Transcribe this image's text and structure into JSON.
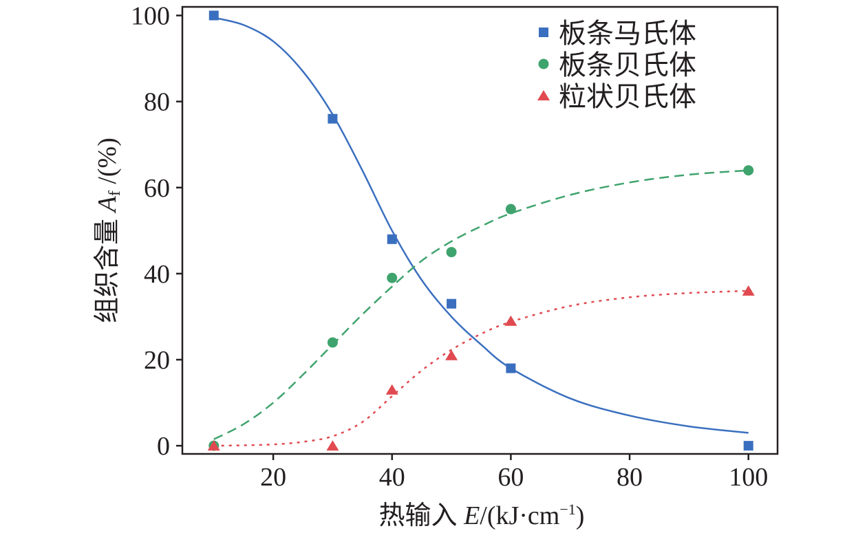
{
  "chart_data": {
    "type": "scatter",
    "title": "",
    "xlabel": {
      "prefix": "热输入 ",
      "var": "E",
      "suffix": "/(kJ·cm",
      "sup": "−1",
      "end": ")"
    },
    "ylabel": {
      "prefix": "组织含量 ",
      "var": "A",
      "sub": "f",
      "suffix": " /(%)"
    },
    "xlim": [
      4.7,
      104.9
    ],
    "ylim": [
      -1.9,
      102
    ],
    "xticks": [
      20,
      40,
      60,
      80,
      100
    ],
    "yticks": [
      0,
      20,
      40,
      60,
      80,
      100
    ],
    "grid": false,
    "legend_position": "top-right",
    "series": [
      {
        "name": "板条马氏体",
        "marker": "square",
        "color": "#3a6fbf",
        "line": "solid",
        "x": [
          10,
          30,
          40,
          50,
          60,
          100
        ],
        "y": [
          100,
          76,
          48,
          33,
          18,
          0
        ],
        "fit_x": [
          10,
          15,
          20,
          25,
          30,
          35,
          40,
          45,
          50,
          55,
          60,
          70,
          80,
          90,
          100
        ],
        "fit_y": [
          99.5,
          97.8,
          94,
          87,
          77,
          64,
          50,
          38.5,
          30,
          23.5,
          18,
          11,
          7,
          4.5,
          3
        ]
      },
      {
        "name": "板条贝氏体",
        "marker": "circle",
        "color": "#3fa36d",
        "line": "dashed",
        "x": [
          10,
          30,
          40,
          50,
          60,
          100
        ],
        "y": [
          0,
          24,
          39,
          45,
          55,
          64
        ],
        "fit_x": [
          10,
          15,
          20,
          25,
          30,
          35,
          40,
          45,
          50,
          55,
          60,
          70,
          80,
          90,
          100
        ],
        "fit_y": [
          1.5,
          5,
          10,
          16.5,
          23.5,
          30.5,
          37,
          43,
          47.5,
          51,
          54,
          58.3,
          61.2,
          63,
          64
        ]
      },
      {
        "name": "粒状贝氏体",
        "marker": "triangle",
        "color": "#e04a50",
        "line": "dotted",
        "x": [
          10,
          30,
          40,
          50,
          60,
          100
        ],
        "y": [
          0,
          0,
          13,
          21,
          29,
          36
        ],
        "fit_x": [
          10,
          15,
          20,
          25,
          30,
          35,
          40,
          45,
          50,
          55,
          60,
          70,
          80,
          90,
          100
        ],
        "fit_y": [
          0,
          0.1,
          0.3,
          0.9,
          2.2,
          5.5,
          11.5,
          17.5,
          22.3,
          26,
          28.8,
          32.5,
          34.5,
          35.5,
          36
        ]
      }
    ]
  }
}
